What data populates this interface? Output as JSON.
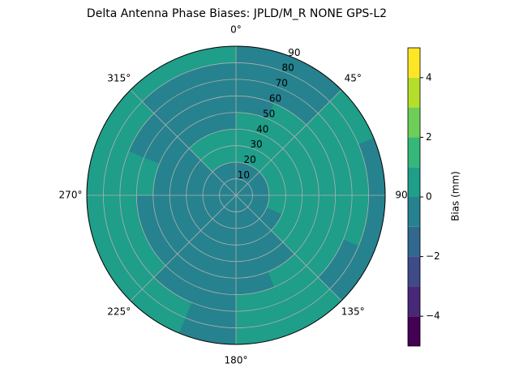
{
  "chart_data": {
    "type": "polar-contour",
    "title": "Delta Antenna Phase Biases: JPLD/M_R        NONE GPS-L2",
    "theta_ticks": [
      {
        "value": 0,
        "label": "0°"
      },
      {
        "value": 45,
        "label": "45°"
      },
      {
        "value": 90,
        "label": "90"
      },
      {
        "value": 135,
        "label": "135°"
      },
      {
        "value": 180,
        "label": "180°"
      },
      {
        "value": 225,
        "label": "225°"
      },
      {
        "value": 270,
        "label": "270°"
      },
      {
        "value": 315,
        "label": "315°"
      }
    ],
    "rlim": [
      0,
      90
    ],
    "rticks": [
      10,
      20,
      30,
      40,
      50,
      60,
      70,
      80,
      90
    ],
    "grid": true,
    "azimuth_bins": [
      0,
      22.5,
      45,
      67.5,
      90,
      112.5,
      135,
      157.5,
      180,
      202.5,
      225,
      247.5,
      270,
      292.5,
      315,
      337.5,
      360
    ],
    "radius_bins": [
      0,
      10,
      20,
      30,
      40,
      50,
      60,
      70,
      80,
      90
    ],
    "values": [
      [
        -0.5,
        -0.5,
        0.5,
        0.5,
        0.5,
        -0.5,
        -0.5,
        -0.5,
        -0.5
      ],
      [
        -0.5,
        -0.5,
        0.5,
        0.5,
        0.5,
        0.5,
        -0.5,
        -0.5,
        -0.5
      ],
      [
        -0.5,
        -0.5,
        0.5,
        0.5,
        0.5,
        0.5,
        0.5,
        0.5,
        0.5
      ],
      [
        -0.5,
        -0.5,
        0.5,
        0.5,
        0.5,
        0.5,
        0.5,
        0.5,
        -0.5
      ],
      [
        -0.5,
        -0.5,
        0.5,
        0.5,
        0.5,
        0.5,
        0.5,
        0.5,
        -0.5
      ],
      [
        -0.5,
        -0.5,
        -0.5,
        0.5,
        0.5,
        0.5,
        0.5,
        -0.5,
        -0.5
      ],
      [
        -0.5,
        -0.5,
        -0.5,
        -0.5,
        -0.5,
        0.5,
        0.5,
        0.5,
        0.5
      ],
      [
        -0.5,
        -0.5,
        -0.5,
        -0.5,
        -0.5,
        -0.5,
        0.5,
        0.5,
        0.5
      ],
      [
        -0.5,
        -0.5,
        -0.5,
        -0.5,
        -0.5,
        -0.5,
        -0.5,
        -0.5,
        -0.5
      ],
      [
        -0.5,
        -0.5,
        -0.5,
        -0.5,
        -0.5,
        -0.5,
        -0.5,
        0.5,
        0.5
      ],
      [
        -0.5,
        -0.5,
        -0.5,
        -0.5,
        -0.5,
        -0.5,
        0.5,
        0.5,
        0.5
      ],
      [
        -0.5,
        -0.5,
        -0.5,
        -0.5,
        -0.5,
        -0.5,
        0.5,
        0.5,
        0.5
      ],
      [
        -0.5,
        -0.5,
        -0.5,
        -0.5,
        -0.5,
        0.5,
        0.5,
        0.5,
        0.5
      ],
      [
        -0.5,
        -0.5,
        -0.5,
        -0.5,
        -0.5,
        -0.5,
        -0.5,
        0.5,
        0.5
      ],
      [
        -0.5,
        -0.5,
        0.5,
        0.5,
        -0.5,
        -0.5,
        -0.5,
        -0.5,
        0.5
      ],
      [
        -0.5,
        -0.5,
        0.5,
        0.5,
        -0.5,
        -0.5,
        -0.5,
        -0.5,
        0.5
      ]
    ],
    "colorbar": {
      "label": "Bias (mm)",
      "lim": [
        -5,
        5
      ],
      "levels": [
        -5,
        -4,
        -3,
        -2,
        -1,
        0,
        1,
        2,
        3,
        4,
        5
      ],
      "colors": [
        "#440154",
        "#482878",
        "#3e4a89",
        "#31688e",
        "#26828e",
        "#1f9e89",
        "#35b779",
        "#6ece58",
        "#b5de2b",
        "#fde725"
      ],
      "ticks": [
        {
          "value": -4,
          "label": "−4"
        },
        {
          "value": -2,
          "label": "−2"
        },
        0,
        2,
        4
      ]
    }
  }
}
